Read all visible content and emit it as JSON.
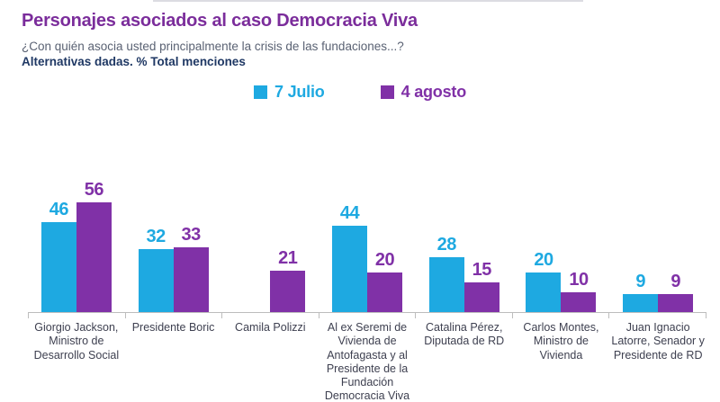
{
  "header": {
    "title": "Personajes asociados al caso Democracia Viva",
    "subtitle": "¿Con quién asocia usted principalmente la crisis de las fundaciones...?",
    "subtitle_bold": "Alternativas dadas. % Total menciones"
  },
  "chart_data": {
    "type": "bar",
    "title": "Personajes asociados al caso Democracia Viva",
    "categories": [
      "Giorgio Jackson,\nMinistro de\nDesarrollo Social",
      "Presidente Boric",
      "Camila Polizzi",
      "Al ex Seremi de\nVivienda de\nAntofagasta y al\nPresidente de la\nFundación\nDemocracia Viva",
      "Catalina Pérez,\nDiputada de RD",
      "Carlos Montes,\nMinistro de\nVivienda",
      "Juan Ignacio\nLatorre, Senador y\nPresidente de RD"
    ],
    "series": [
      {
        "name": "7 Julio",
        "color": "#1ea9e1",
        "values": [
          46,
          32,
          null,
          44,
          28,
          20,
          9
        ]
      },
      {
        "name": "4 agosto",
        "color": "#8031a7",
        "values": [
          56,
          33,
          21,
          20,
          15,
          10,
          9
        ]
      }
    ],
    "value_labels": true,
    "unit": "% Total menciones",
    "ylim": [
      0,
      60
    ],
    "grid": false,
    "legend_position": "top-center"
  },
  "colors": {
    "title": "#7b2d9b",
    "subtitle": "#5a6273",
    "subtitle_bold": "#1f3864",
    "axis": "#bdbdbd",
    "category_label": "#3e4050",
    "series_july": "#1ea9e1",
    "series_august": "#8031a7"
  }
}
